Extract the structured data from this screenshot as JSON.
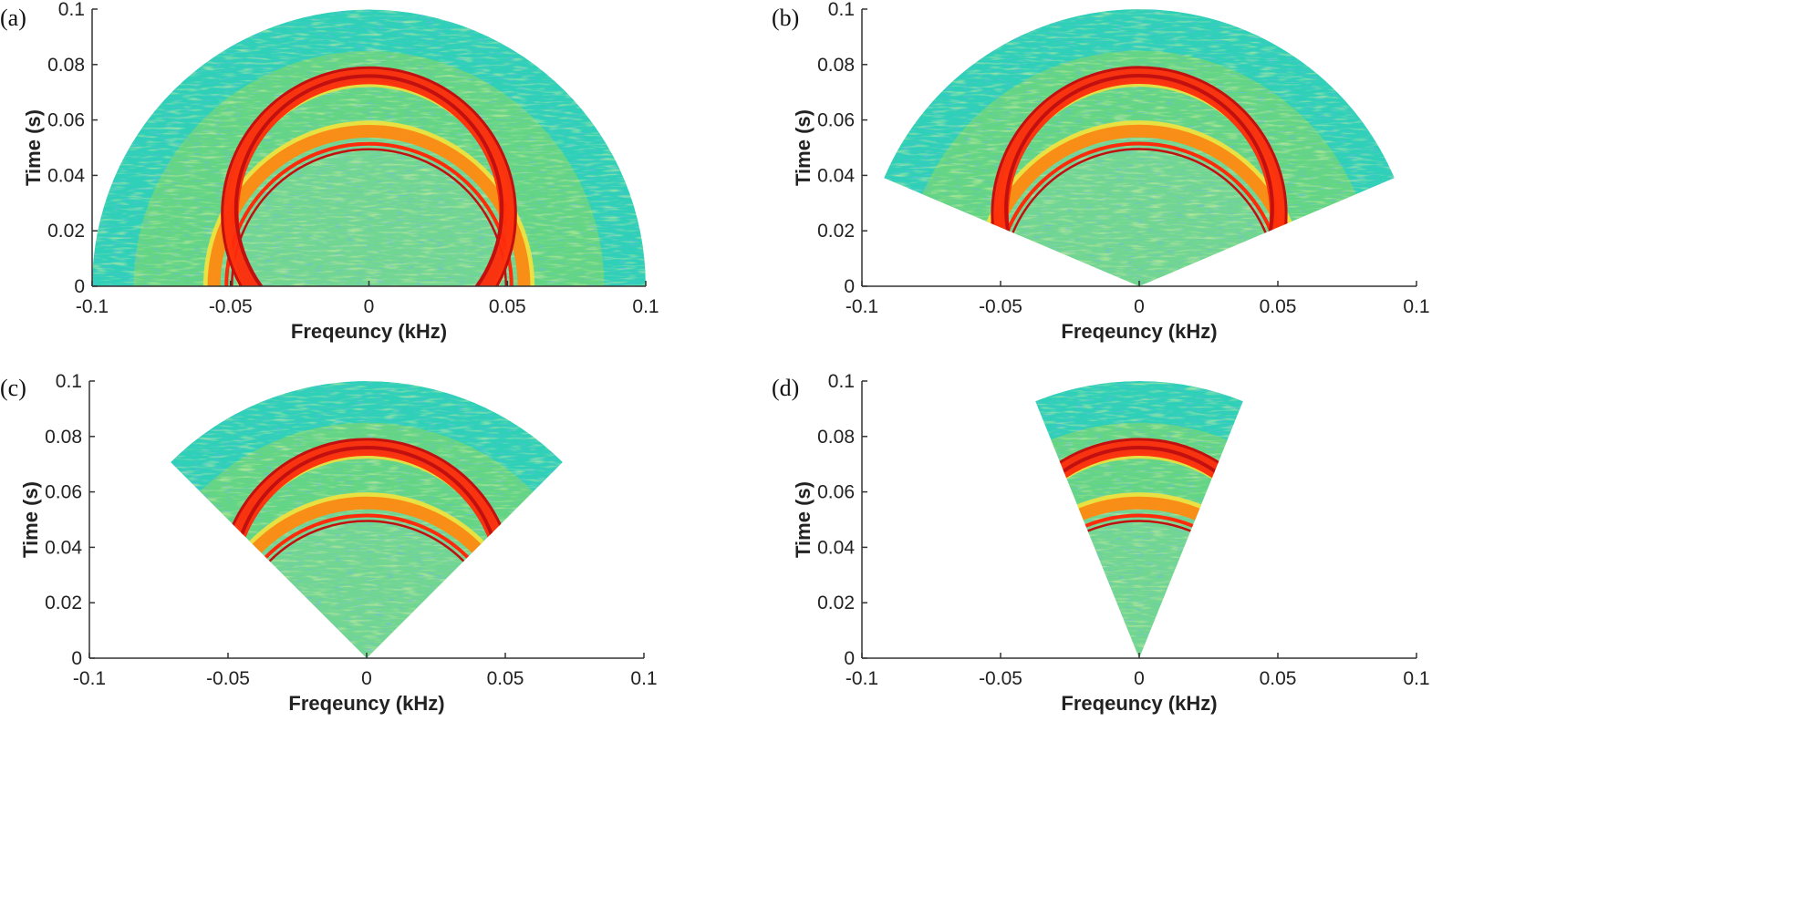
{
  "chart_data": [
    {
      "panel": "(a)",
      "type": "heatmap",
      "xlabel": "Freqeuncy (kHz)",
      "ylabel": "Time (s)",
      "xlim": [
        -0.1,
        0.1
      ],
      "ylim": [
        0,
        0.1
      ],
      "x_ticks": [
        "-0.1",
        "-0.05",
        "0",
        "0.05",
        "0.1"
      ],
      "y_ticks": [
        "0",
        "0.02",
        "0.04",
        "0.06",
        "0.08",
        "0.1"
      ],
      "sector_half_angle_deg": 90,
      "outer_radius": 0.1,
      "colormap": "jet"
    },
    {
      "panel": "(b)",
      "type": "heatmap",
      "xlabel": "Freqeuncy (kHz)",
      "ylabel": "Time (s)",
      "xlim": [
        -0.1,
        0.1
      ],
      "ylim": [
        0,
        0.1
      ],
      "x_ticks": [
        "-0.1",
        "-0.05",
        "0",
        "0.05",
        "0.1"
      ],
      "y_ticks": [
        "0",
        "0.02",
        "0.04",
        "0.06",
        "0.08",
        "0.1"
      ],
      "sector_half_angle_deg": 67,
      "outer_radius": 0.1,
      "colormap": "jet"
    },
    {
      "panel": "(c)",
      "type": "heatmap",
      "xlabel": "Freqeuncy (kHz)",
      "ylabel": "Time (s)",
      "xlim": [
        -0.1,
        0.1
      ],
      "ylim": [
        0,
        0.1
      ],
      "x_ticks": [
        "-0.1",
        "-0.05",
        "0",
        "0.05",
        "0.1"
      ],
      "y_ticks": [
        "0",
        "0.02",
        "0.04",
        "0.06",
        "0.08",
        "0.1"
      ],
      "sector_half_angle_deg": 45,
      "outer_radius": 0.1,
      "colormap": "jet"
    },
    {
      "panel": "(d)",
      "type": "heatmap",
      "xlabel": "Freqeuncy (kHz)",
      "ylabel": "Time (s)",
      "xlim": [
        -0.1,
        0.1
      ],
      "ylim": [
        0,
        0.1
      ],
      "x_ticks": [
        "-0.1",
        "-0.05",
        "0",
        "0.05",
        "0.1"
      ],
      "y_ticks": [
        "0",
        "0.02",
        "0.04",
        "0.06",
        "0.08",
        "0.1"
      ],
      "sector_half_angle_deg": 22,
      "outer_radius": 0.1,
      "colormap": "jet"
    }
  ],
  "colors": {
    "background": "#2fd0b8",
    "noise": "#8ed85a",
    "speckle": "#2a7ad8",
    "ring_outer": "#ff8a10",
    "ring_core": "#ff2a0a",
    "ring_dark": "#c21010",
    "halo": "#f4e23a"
  }
}
